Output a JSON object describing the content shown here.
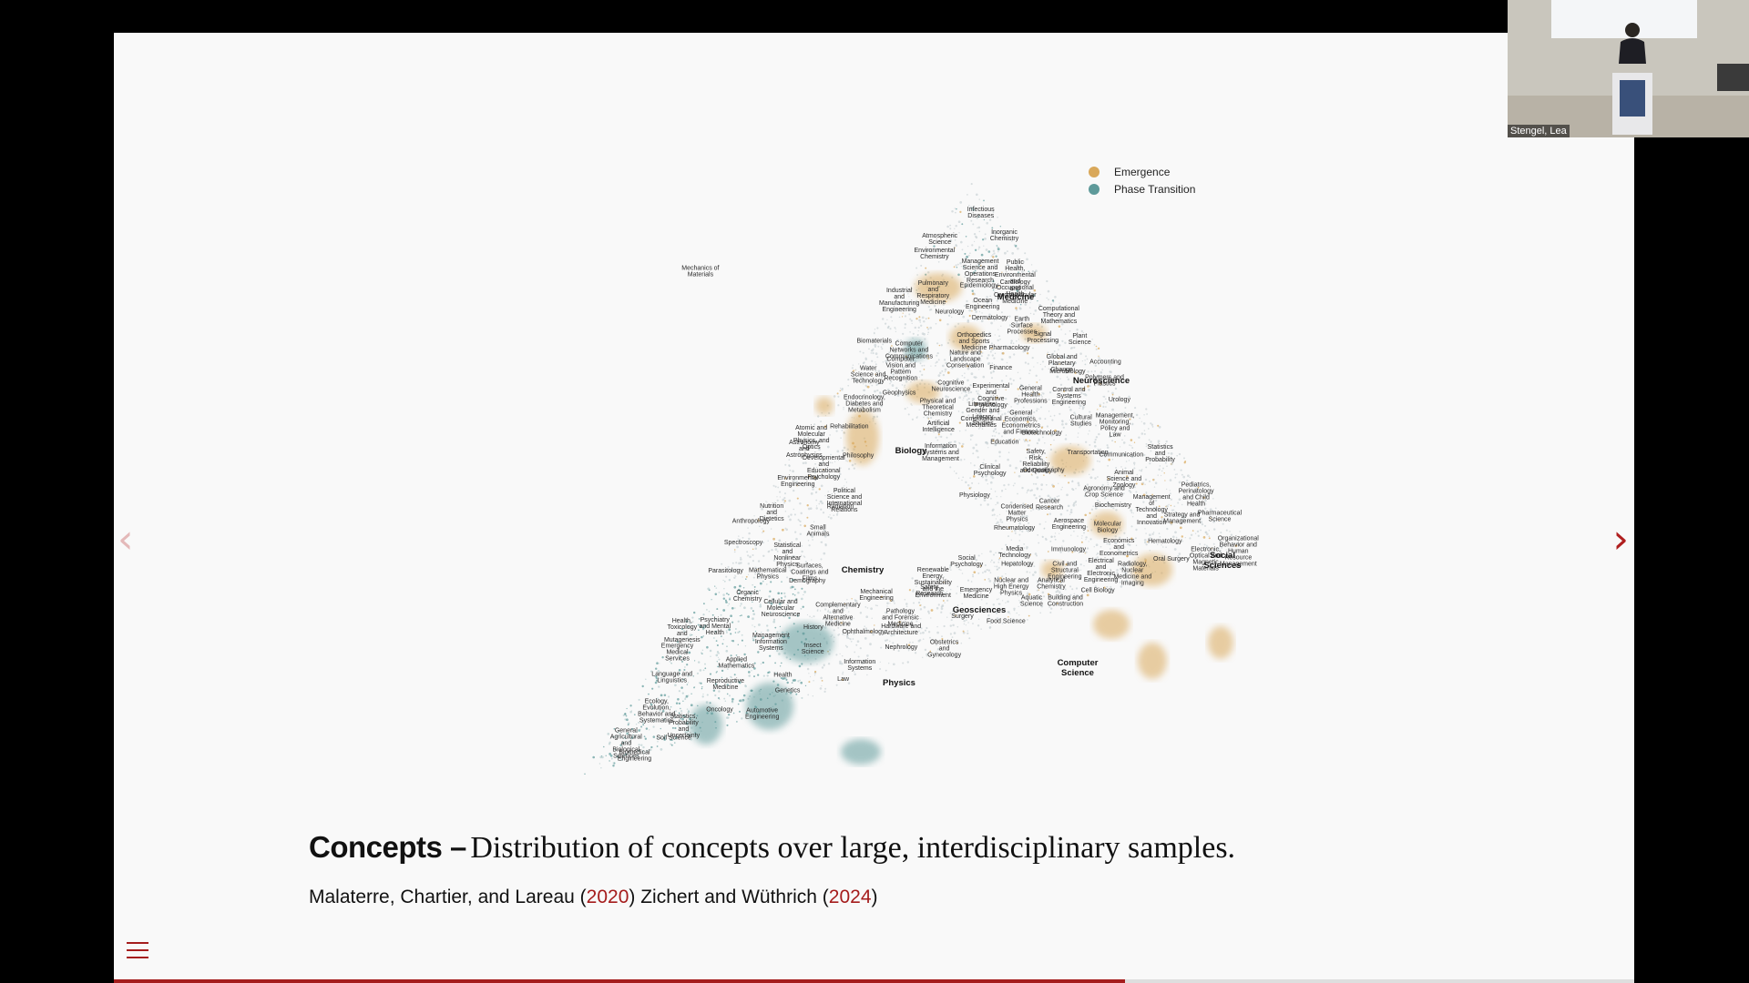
{
  "slide": {
    "legend": [
      {
        "label": "Emergence",
        "color": "#d9a85a"
      },
      {
        "label": "Phase Transition",
        "color": "#5e9a9a"
      }
    ],
    "map_labels": {
      "major": [
        "Medicine",
        "Neuroscience",
        "Biology",
        "Chemistry",
        "Geosciences",
        "Social Sciences",
        "Physics",
        "Computer Science"
      ],
      "minor": [
        "Urology",
        "Oncology",
        "Reproductive Medicine",
        "Obstetrics and Gynecology",
        "Cancer Research",
        "Hematology",
        "Pulmonary and Respiratory Medicine",
        "Surgery",
        "Hepatology",
        "Immunology",
        "Rheumatology",
        "Nephrology",
        "Cardiology and Cardiovascular Medicine",
        "Pathology and Forensic Medicine",
        "Endocrinology, Diabetes and Metabolism",
        "Emergency Medicine",
        "Cell Biology",
        "Genetics",
        "Emergency Medical Services",
        "Molecular Biology",
        "Pharmacology",
        "Epidemiology",
        "Pediatrics, Perinatology and Child Health",
        "Dermatology",
        "Physiology",
        "Complementary and Alternative Medicine",
        "Orthopedics and Sports Medicine",
        "Nutrition and Dietetics",
        "Rehabilitation",
        "Neurology",
        "Microbiology",
        "Infectious Diseases",
        "Cellular and Molecular Neuroscience",
        "Pharmaceutical Science",
        "Parasitology",
        "Ophthalmology",
        "Radiology, Nuclear Medicine and Imaging",
        "Psychiatry and Mental Health",
        "Public Health, Environmental and Occupational Health",
        "Biotechnology",
        "Small Animals",
        "Biochemistry",
        "Animal Science and Zoology",
        "Oral Surgery",
        "Agronomy and Crop Science",
        "Insect Science",
        "Cognitive Neuroscience",
        "General Health Professions",
        "Plant Science",
        "Food Science",
        "Aquatic Science",
        "Health",
        "Clinical Psychology",
        "Ecology, Evolution, Behavior and Systematics",
        "Nature and Landscape Conservation",
        "Experimental and Cognitive Psychology",
        "Global and Planetary Change",
        "Developmental and Educational Psychology",
        "Social Psychology",
        "Safety Research",
        "Analytical Chemistry",
        "Soil Science",
        "Language and Linguistics",
        "Literature, Gender and Literary Studies",
        "Education",
        "Environmental Chemistry",
        "Health, Toxicology and Mutagenesis",
        "Philosophy",
        "History",
        "Cultural Studies",
        "Biomaterials",
        "Anthropology",
        "Communication",
        "Organic Chemistry",
        "Biomedical Engineering",
        "Political Science and International Relations",
        "Organizational Behavior and Human Resource Management",
        "Water Science and Technology",
        "Law",
        "Physical and Theoretical Chemistry",
        "Environmental Engineering",
        "Statistics and Probability",
        "Media Technology",
        "Demography",
        "Information Systems and Management",
        "Spectroscopy",
        "Atmospheric Science",
        "Computer Vision and Pattern Recognition",
        "Renewable Energy, Sustainability and the Environment",
        "Inorganic Chemistry",
        "Geophysics",
        "Oceanography",
        "Polymers and Plastics",
        "Earth Surface Processes",
        "Artificial Intelligence",
        "Information Systems",
        "Management, Monitoring, Policy and Law",
        "General Agricultural and Biological Sciences",
        "Strategy and Management",
        "Management of Technology and Innovation",
        "Surfaces, Coatings and Films",
        "Ocean Engineering",
        "Applied Mathematics",
        "Signal Processing",
        "Computational Theory and Mathematics",
        "Economics and Econometrics",
        "Mathematical Physics",
        "Electronic, Optical and Magnetic Materials",
        "Condensed Matter Physics",
        "Statistical and Nonlinear Physics",
        "Computer Networks and Communications",
        "Management Science and Operations Research",
        "Management Information Systems",
        "General Economics, Econometrics and Finance",
        "Accounting",
        "Finance",
        "Atomic and Molecular Physics, and Optics",
        "Computational Mechanics",
        "Hardware and Architecture",
        "Safety, Risk, Reliability and Quality",
        "Transportation",
        "Electrical and Electronic Engineering",
        "Mechanical Engineering",
        "Aerospace Engineering",
        "Statistics, Probability and Uncertainty",
        "Industrial and Manufacturing Engineering",
        "Nuclear and High Energy Physics",
        "Radiation",
        "Mechanics of Materials",
        "Building and Construction",
        "Automotive Engineering",
        "Control and Systems Engineering",
        "Civil and Structural Engineering",
        "Astronomy and Astrophysics"
      ]
    },
    "caption": {
      "title": "Concepts –",
      "text": "Distribution of concepts over large, interdisciplinary samples."
    },
    "citations": [
      {
        "authors": "Malaterre, Chartier, and Lareau",
        "year": "2020"
      },
      {
        "authors": "Zichert and Wüthrich",
        "year": "2024"
      }
    ],
    "progress": 0.665
  },
  "navigation": {
    "prev_icon": "‹",
    "next_icon": "›"
  },
  "webcam": {
    "name": "Stengel, Lea"
  },
  "icons": [
    "chevron-left-icon",
    "chevron-right-icon",
    "hamburger-menu-icon"
  ]
}
